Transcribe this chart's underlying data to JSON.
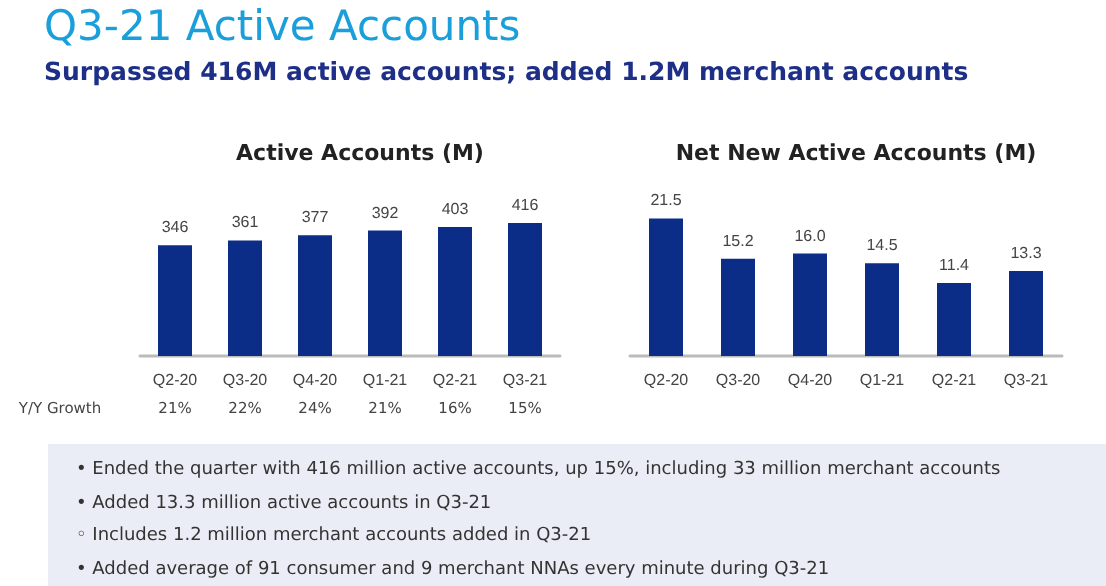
{
  "chart_data": [
    {
      "type": "other",
      "title": "Q3-21 Active Accounts",
      "subtitle": "Surpassed 416M active accounts; added 1.2M merchant accounts",
      "annotations": [
        "• Ended the quarter with 416 million active accounts, up 15%, including 33 million merchant accounts",
        "• Added 13.3 million active accounts in Q3-21",
        "◦ Includes 1.2 million merchant accounts added in Q3-21",
        "• Added average of 91 consumer and 9 merchant NNAs every minute during Q3-21"
      ]
    },
    {
      "type": "bar",
      "title": "Active Accounts (M)",
      "categories": [
        "Q2-20",
        "Q3-20",
        "Q4-20",
        "Q1-21",
        "Q2-21",
        "Q3-21"
      ],
      "values": [
        346,
        361,
        377,
        392,
        403,
        416
      ],
      "color": "#0b2d87",
      "data_labels": true,
      "annotations": [
        "Y/Y Growth",
        "21%",
        "22%",
        "24%",
        "21%",
        "16%",
        "15%"
      ]
    },
    {
      "type": "bar",
      "title": "Net New Active Accounts (M)",
      "categories": [
        "Q2-20",
        "Q3-20",
        "Q4-20",
        "Q1-21",
        "Q2-21",
        "Q3-21"
      ],
      "values": [
        21.5,
        15.2,
        16.0,
        14.5,
        11.4,
        13.3
      ],
      "value_labels": [
        "21.5",
        "15.2",
        "16.0",
        "14.5",
        "11.4",
        "13.3"
      ],
      "color": "#0b2d87"
    }
  ]
}
